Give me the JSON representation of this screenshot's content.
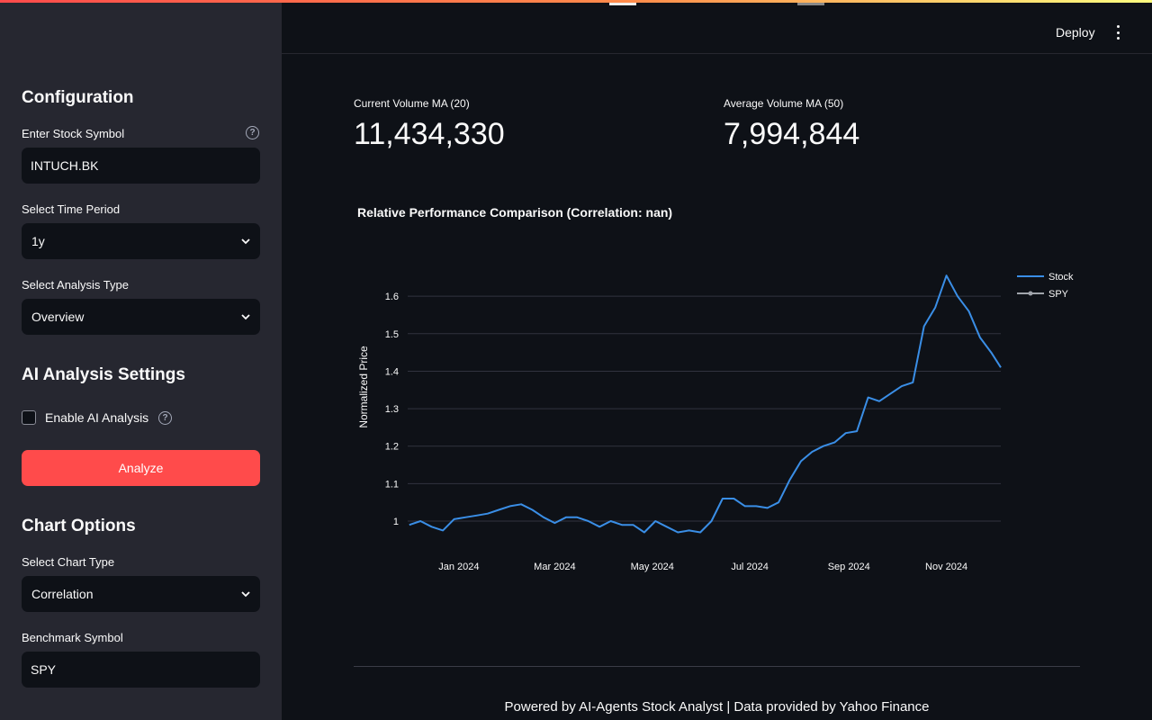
{
  "sidebar": {
    "config_heading": "Configuration",
    "stock_symbol_label": "Enter Stock Symbol",
    "stock_symbol_value": "INTUCH.BK",
    "time_period_label": "Select Time Period",
    "time_period_value": "1y",
    "analysis_type_label": "Select Analysis Type",
    "analysis_type_value": "Overview",
    "ai_heading": "AI Analysis Settings",
    "enable_ai_label": "Enable AI Analysis",
    "enable_ai_checked": false,
    "analyze_label": "Analyze",
    "chart_heading": "Chart Options",
    "chart_type_label": "Select Chart Type",
    "chart_type_value": "Correlation",
    "benchmark_label": "Benchmark Symbol",
    "benchmark_value": "SPY"
  },
  "header": {
    "deploy_label": "Deploy"
  },
  "metrics": [
    {
      "label": "Current Volume MA (20)",
      "value": "11,434,330"
    },
    {
      "label": "Average Volume MA (50)",
      "value": "7,994,844"
    }
  ],
  "chart_data": {
    "type": "line",
    "title": "Relative Performance Comparison (Correlation: nan)",
    "ylabel": "Normalized Price",
    "xlabel": "",
    "ylim": [
      0.94,
      1.67
    ],
    "y_ticks": [
      "1",
      "1.1",
      "1.2",
      "1.3",
      "1.4",
      "1.5",
      "1.6"
    ],
    "x_ticks": [
      "Jan 2024",
      "Mar 2024",
      "May 2024",
      "Jul 2024",
      "Sep 2024",
      "Nov 2024"
    ],
    "x_range": [
      "2023-11-30",
      "2024-12-05"
    ],
    "legend_position": "top-right",
    "grid": true,
    "series": [
      {
        "name": "Stock",
        "color": "#3a8ee6",
        "x": [
          "2023-12-01",
          "2023-12-08",
          "2023-12-15",
          "2023-12-22",
          "2023-12-29",
          "2024-01-05",
          "2024-01-12",
          "2024-01-19",
          "2024-01-26",
          "2024-02-02",
          "2024-02-09",
          "2024-02-16",
          "2024-02-23",
          "2024-03-01",
          "2024-03-08",
          "2024-03-15",
          "2024-03-22",
          "2024-03-29",
          "2024-04-05",
          "2024-04-12",
          "2024-04-19",
          "2024-04-26",
          "2024-05-03",
          "2024-05-10",
          "2024-05-17",
          "2024-05-24",
          "2024-05-31",
          "2024-06-07",
          "2024-06-14",
          "2024-06-21",
          "2024-06-28",
          "2024-07-05",
          "2024-07-12",
          "2024-07-19",
          "2024-07-26",
          "2024-08-02",
          "2024-08-09",
          "2024-08-16",
          "2024-08-23",
          "2024-08-30",
          "2024-09-06",
          "2024-09-13",
          "2024-09-20",
          "2024-09-27",
          "2024-10-04",
          "2024-10-11",
          "2024-10-18",
          "2024-10-25",
          "2024-11-01",
          "2024-11-08",
          "2024-11-15",
          "2024-11-22",
          "2024-11-29",
          "2024-12-05"
        ],
        "values": [
          0.99,
          1.0,
          0.985,
          0.975,
          1.005,
          1.01,
          1.015,
          1.02,
          1.03,
          1.04,
          1.045,
          1.03,
          1.01,
          0.995,
          1.01,
          1.01,
          1.0,
          0.985,
          1.0,
          0.99,
          0.99,
          0.97,
          1.0,
          0.985,
          0.97,
          0.975,
          0.97,
          1.0,
          1.06,
          1.06,
          1.04,
          1.04,
          1.035,
          1.05,
          1.11,
          1.16,
          1.185,
          1.2,
          1.21,
          1.235,
          1.24,
          1.33,
          1.32,
          1.34,
          1.36,
          1.37,
          1.52,
          1.57,
          1.655,
          1.6,
          1.56,
          1.49,
          1.45,
          1.41
        ]
      },
      {
        "name": "SPY",
        "color": "#a0a4ab",
        "x": [],
        "values": []
      }
    ]
  },
  "footer": {
    "text": "Powered by AI-Agents Stock Analyst | Data provided by Yahoo Finance"
  }
}
